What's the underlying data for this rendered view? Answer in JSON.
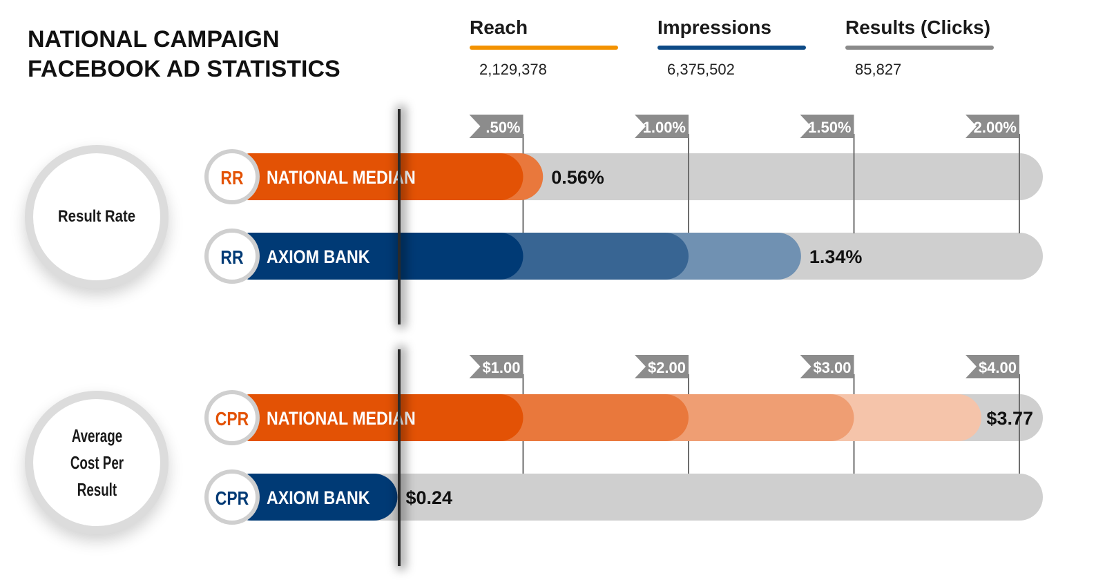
{
  "title": {
    "line1": "NATIONAL CAMPAIGN",
    "line2": "FACEBOOK AD STATISTICS"
  },
  "stats": [
    {
      "label": "Reach",
      "value": "2,129,378",
      "color": "#f39200"
    },
    {
      "label": "Impressions",
      "value": "6,375,502",
      "color": "#0d4a86"
    },
    {
      "label": "Results (Clicks)",
      "value": "85,827",
      "color": "#8a8a8a"
    }
  ],
  "colors": {
    "orange": "#e35205",
    "navy": "#003a75",
    "track": "#cfcfcf"
  },
  "chart_data": [
    {
      "type": "bar",
      "title": "Result Rate",
      "ticks": [
        ".50%",
        "1.00%",
        "1.50%",
        "2.00%"
      ],
      "tick_values": [
        0.5,
        1.0,
        1.5,
        2.0
      ],
      "xlim": [
        0,
        2.0
      ],
      "series": [
        {
          "badge": "RR",
          "name": "NATIONAL MEDIAN",
          "value": 0.56,
          "label": "0.56%",
          "color": "#e35205"
        },
        {
          "badge": "RR",
          "name": "AXIOM BANK",
          "value": 1.34,
          "label": "1.34%",
          "color": "#003a75"
        }
      ]
    },
    {
      "type": "bar",
      "title": "Average Cost Per Result",
      "title_lines": [
        "Average",
        "Cost Per",
        "Result"
      ],
      "ticks": [
        "$1.00",
        "$2.00",
        "$3.00",
        "$4.00"
      ],
      "tick_values": [
        1,
        2,
        3,
        4
      ],
      "xlim": [
        0,
        4
      ],
      "series": [
        {
          "badge": "CPR",
          "name": "NATIONAL MEDIAN",
          "value": 3.77,
          "label": "$3.77",
          "color": "#e35205"
        },
        {
          "badge": "CPR",
          "name": "AXIOM BANK",
          "value": 0.24,
          "label": "$0.24",
          "color": "#003a75"
        }
      ]
    }
  ]
}
